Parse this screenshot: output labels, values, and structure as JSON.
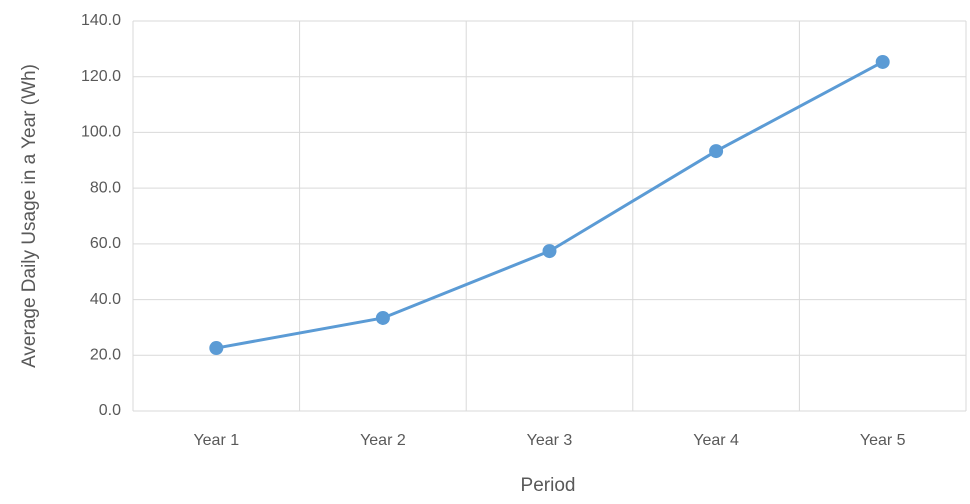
{
  "chart_data": {
    "type": "line",
    "x_label": "Period",
    "y_label": "Average Daily Usage in a Year (Wh)",
    "categories": [
      "Year 1",
      "Year 2",
      "Year 3",
      "Year 4",
      "Year 5"
    ],
    "series": [
      {
        "name": "Average Daily Usage",
        "color": "#5b9bd5",
        "values": [
          22.6,
          33.4,
          57.4,
          93.3,
          125.3
        ]
      }
    ],
    "ylim": [
      0,
      140
    ],
    "yticks": [
      {
        "value": 0,
        "label": "0.0"
      },
      {
        "value": 20,
        "label": "20.0"
      },
      {
        "value": 40,
        "label": "40.0"
      },
      {
        "value": 60,
        "label": "60.0"
      },
      {
        "value": 80,
        "label": "80.0"
      },
      {
        "value": 100,
        "label": "100.0"
      },
      {
        "value": 120,
        "label": "120.0"
      },
      {
        "value": 140,
        "label": "140.0"
      }
    ],
    "grid": true
  }
}
